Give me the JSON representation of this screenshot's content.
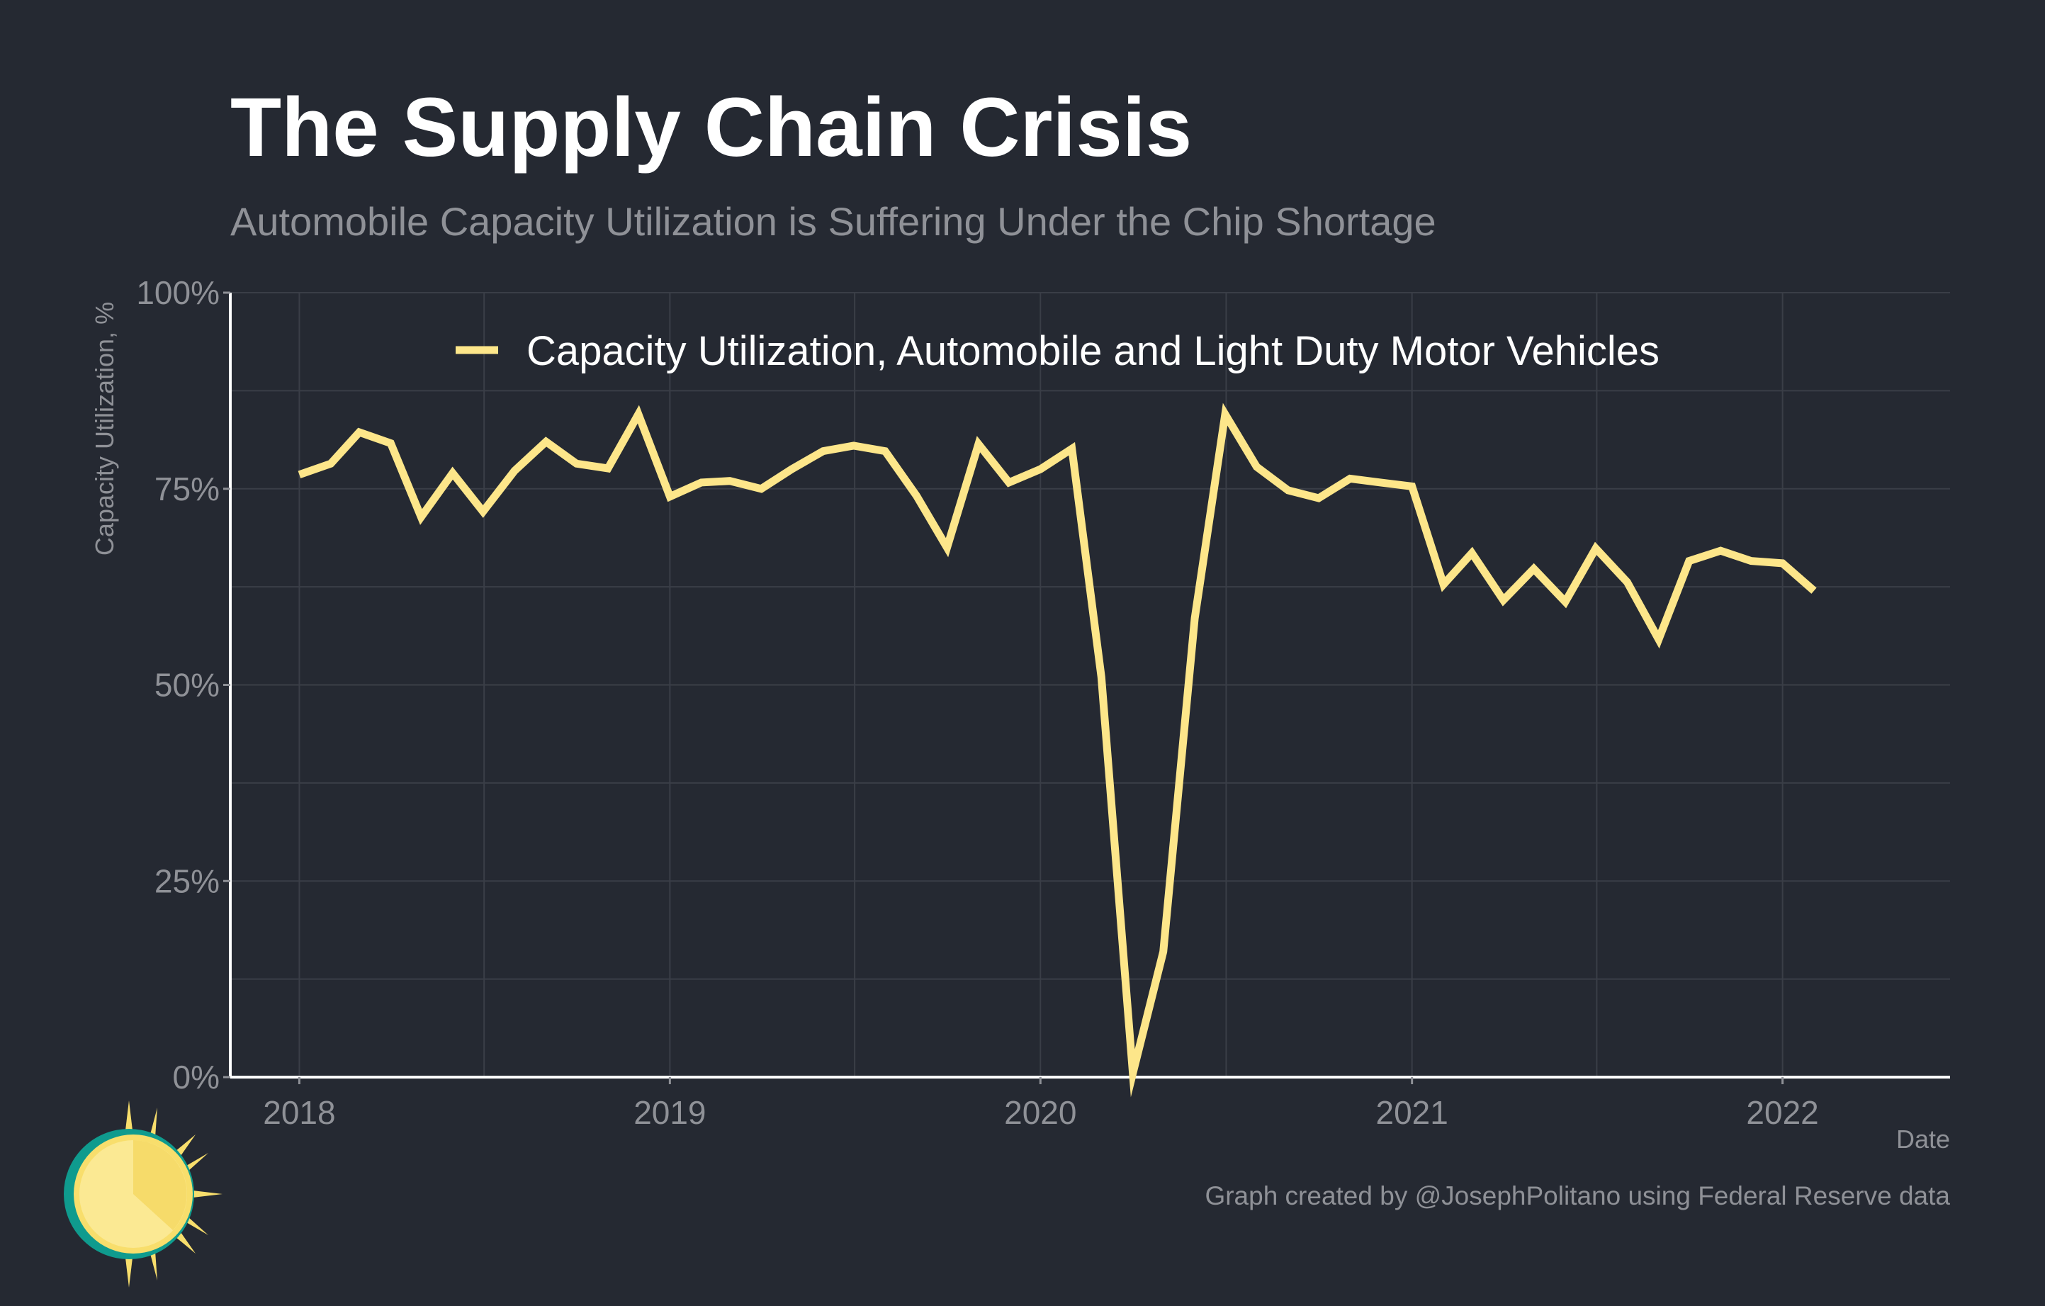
{
  "chart_data": {
    "type": "line",
    "title": "The Supply Chain Crisis",
    "subtitle": "Automobile Capacity Utilization is Suffering Under the Chip Shortage",
    "xlabel": "Date",
    "ylabel": "Capacity Utilization, %",
    "caption": "Graph created by @JosephPolitano using Federal Reserve data",
    "ylim": [
      0,
      100
    ],
    "xlim": [
      "2017-10-25",
      "2022-06-15"
    ],
    "y_ticks": [
      {
        "value": 0,
        "label": "0%"
      },
      {
        "value": 25,
        "label": "25%"
      },
      {
        "value": 50,
        "label": "50%"
      },
      {
        "value": 75,
        "label": "75%"
      },
      {
        "value": 100,
        "label": "100%"
      }
    ],
    "x_ticks": [
      {
        "value": "2018-01-01",
        "label": "2018"
      },
      {
        "value": "2019-01-01",
        "label": "2019"
      },
      {
        "value": "2020-01-01",
        "label": "2020"
      },
      {
        "value": "2021-01-01",
        "label": "2021"
      },
      {
        "value": "2022-01-01",
        "label": "2022"
      }
    ],
    "grid": true,
    "legend_position": "top-center",
    "series": [
      {
        "name": "Capacity Utilization, Automobile and Light Duty Motor Vehicles",
        "color": "#fde68a",
        "x": [
          "2018-01-01",
          "2018-02-01",
          "2018-03-01",
          "2018-04-01",
          "2018-05-01",
          "2018-06-01",
          "2018-07-01",
          "2018-08-01",
          "2018-09-01",
          "2018-10-01",
          "2018-11-01",
          "2018-12-01",
          "2019-01-01",
          "2019-02-01",
          "2019-03-01",
          "2019-04-01",
          "2019-05-01",
          "2019-06-01",
          "2019-07-01",
          "2019-08-01",
          "2019-09-01",
          "2019-10-01",
          "2019-11-01",
          "2019-12-01",
          "2020-01-01",
          "2020-02-01",
          "2020-03-01",
          "2020-04-01",
          "2020-05-01",
          "2020-06-01",
          "2020-07-01",
          "2020-08-01",
          "2020-09-01",
          "2020-10-01",
          "2020-11-01",
          "2020-12-01",
          "2021-01-01",
          "2021-02-01",
          "2021-03-01",
          "2021-04-01",
          "2021-05-01",
          "2021-06-01",
          "2021-07-01",
          "2021-08-01",
          "2021-09-01",
          "2021-10-01",
          "2021-11-01",
          "2021-12-01",
          "2022-01-01",
          "2022-02-01"
        ],
        "values": [
          76.8,
          78.2,
          82.2,
          80.8,
          71.4,
          77.0,
          72.1,
          77.3,
          81.0,
          78.2,
          77.6,
          84.5,
          74.0,
          75.8,
          76.0,
          75.0,
          77.5,
          79.8,
          80.5,
          79.8,
          74.1,
          67.5,
          80.7,
          75.8,
          77.5,
          80.1,
          51.0,
          0.5,
          16.0,
          58.5,
          84.5,
          77.8,
          74.8,
          73.8,
          76.3,
          75.8,
          75.3,
          62.8,
          66.8,
          60.8,
          64.8,
          60.6,
          67.4,
          63.1,
          55.8,
          65.8,
          67.1,
          65.8,
          65.5,
          62.0
        ]
      }
    ]
  }
}
